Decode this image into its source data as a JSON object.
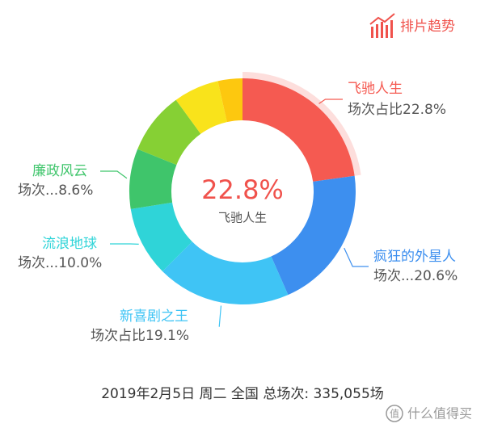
{
  "header": {
    "button": "排片趋势"
  },
  "chart_data": {
    "type": "donut",
    "categories": [
      "飞驰人生",
      "疯狂的外星人",
      "新喜剧之王",
      "流浪地球",
      "廉政风云",
      null,
      null,
      null
    ],
    "values": [
      22.8,
      20.6,
      19.1,
      10.0,
      8.6,
      8.9,
      6.5,
      3.5
    ],
    "value_labels": [
      "场次占比22.8%",
      "场次...20.6%",
      "场次占比19.1%",
      "场次...10.0%",
      "场次...8.6%",
      null,
      null,
      null
    ],
    "colors": [
      "#f55a51",
      "#3d8fef",
      "#3fc4f5",
      "#2fd4d8",
      "#3fc56b",
      "#86d034",
      "#f9e31b",
      "#fdc80f"
    ],
    "center_label": {
      "value_label": "22.8%",
      "name": "飞驰人生"
    }
  },
  "footer": {
    "text": "2019年2月5日 周二 全国 总场次: 335,055场"
  },
  "watermark": {
    "icon": "值",
    "text": "什么值得买"
  }
}
